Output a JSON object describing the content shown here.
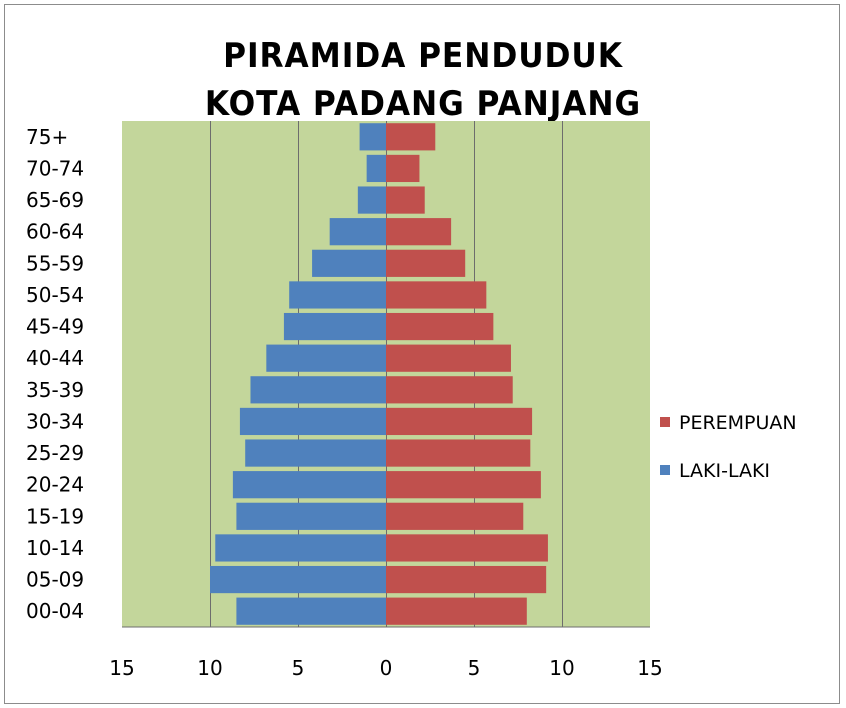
{
  "chart_data": {
    "type": "bar",
    "orientation": "horizontal",
    "title_lines": [
      "PIRAMIDA PENDUDUK",
      "KOTA PADANG PANJANG"
    ],
    "categories": [
      "00-04",
      "05-09",
      "10-14",
      "15-19",
      "20-24",
      "25-29",
      "30-34",
      "35-39",
      "40-44",
      "45-49",
      "50-54",
      "55-59",
      "60-64",
      "65-69",
      "70-74",
      "75+"
    ],
    "series": [
      {
        "name": "LAKI-LAKI",
        "color": "#4f81bd",
        "side": "left",
        "values": [
          8.5,
          10.0,
          9.7,
          8.5,
          8.7,
          8.0,
          8.3,
          7.7,
          6.8,
          5.8,
          5.5,
          4.2,
          3.2,
          1.6,
          1.1,
          1.5
        ]
      },
      {
        "name": "PEREMPUAN",
        "color": "#c0504d",
        "side": "right",
        "values": [
          8.0,
          9.1,
          9.2,
          7.8,
          8.8,
          8.2,
          8.3,
          7.2,
          7.1,
          6.1,
          5.7,
          4.5,
          3.7,
          2.2,
          1.9,
          2.8
        ]
      }
    ],
    "xlim": [
      -15,
      15
    ],
    "x_ticks": [
      -15,
      -10,
      -5,
      0,
      5,
      10,
      15
    ],
    "x_tick_labels": [
      "15",
      "10",
      "5",
      "0",
      "5",
      "10",
      "15"
    ],
    "gridlines": true,
    "plot_background": "#c3d69b",
    "gridline_color": "#6d6d6d",
    "legend": {
      "position": "right",
      "entries": [
        "PEREMPUAN",
        "LAKI-LAKI"
      ]
    }
  }
}
